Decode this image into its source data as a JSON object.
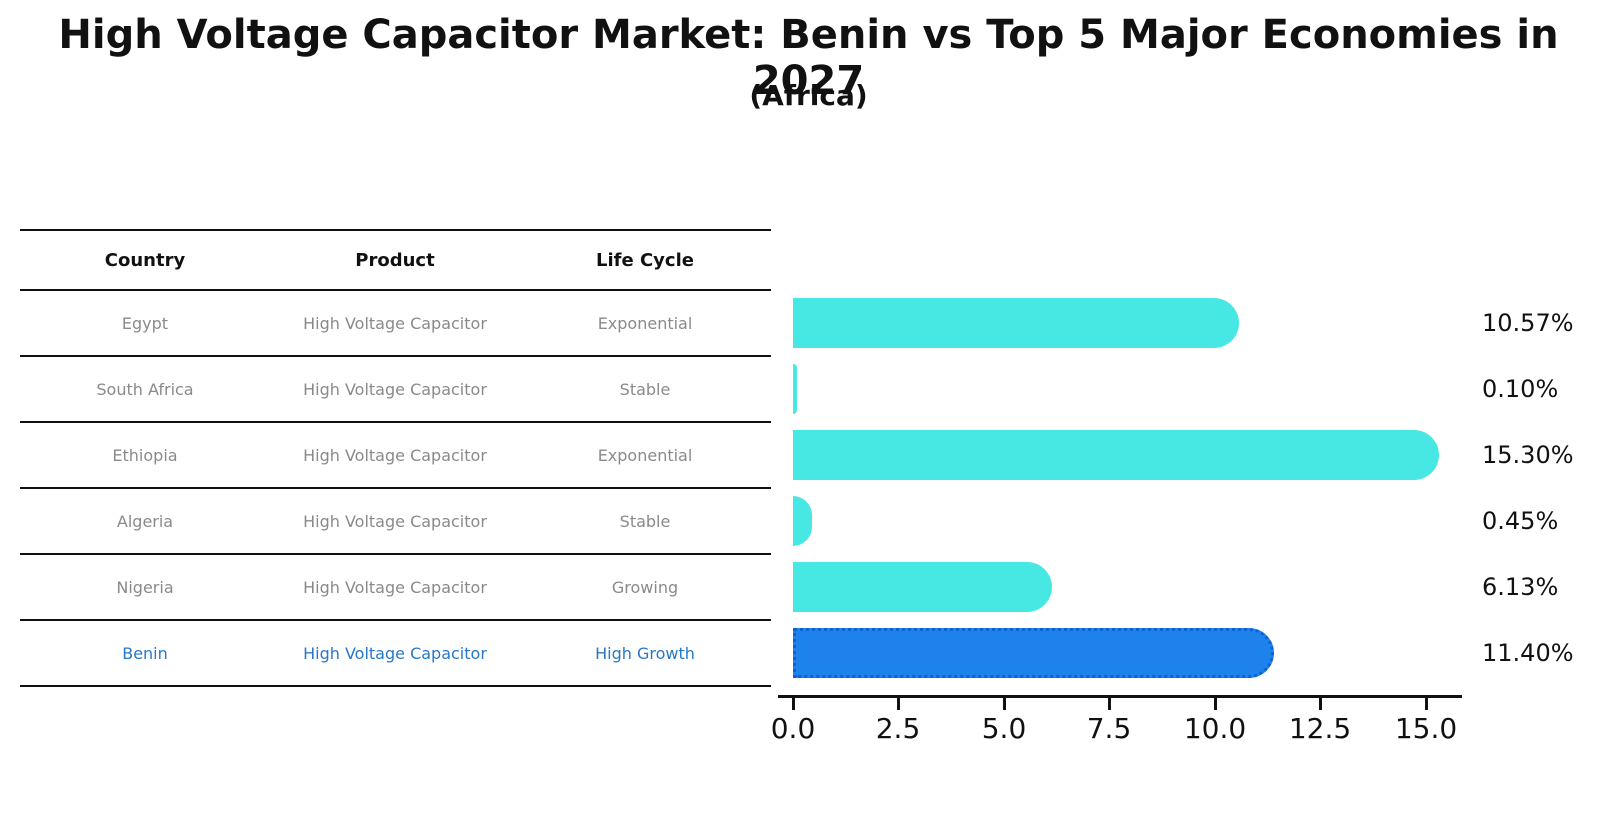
{
  "title": "High Voltage Capacitor Market: Benin vs Top 5 Major Economies in 2027",
  "subtitle": "(Africa)",
  "colors": {
    "bar": "#47E7E3",
    "highlight_bar": "#1E82EC",
    "highlight_bar_border": "#0C63CF",
    "table_text": "#8A8A8A",
    "highlight_text": "#2878C8",
    "axis": "#111111"
  },
  "table": {
    "headers": [
      "Country",
      "Product",
      "Life Cycle"
    ],
    "rows": [
      {
        "country": "Egypt",
        "product": "High Voltage Capacitor",
        "life_cycle": "Exponential",
        "highlight": false
      },
      {
        "country": "South Africa",
        "product": "High Voltage Capacitor",
        "life_cycle": "Stable",
        "highlight": false
      },
      {
        "country": "Ethiopia",
        "product": "High Voltage Capacitor",
        "life_cycle": "Exponential",
        "highlight": false
      },
      {
        "country": "Algeria",
        "product": "High Voltage Capacitor",
        "life_cycle": "Stable",
        "highlight": false
      },
      {
        "country": "Nigeria",
        "product": "High Voltage Capacitor",
        "life_cycle": "Growing",
        "highlight": false
      },
      {
        "country": "Benin",
        "product": "High Voltage Capacitor",
        "life_cycle": "High Growth",
        "highlight": true
      }
    ]
  },
  "chart_data": {
    "type": "bar",
    "orientation": "horizontal",
    "title": "High Voltage Capacitor Market: Benin vs Top 5 Major Economies in 2027 (Africa)",
    "categories": [
      "Egypt",
      "South Africa",
      "Ethiopia",
      "Algeria",
      "Nigeria",
      "Benin"
    ],
    "values": [
      10.57,
      0.1,
      15.3,
      0.45,
      6.13,
      11.4
    ],
    "value_labels": [
      "10.57%",
      "0.10%",
      "15.30%",
      "0.45%",
      "6.13%",
      "11.40%"
    ],
    "highlight_category": "Benin",
    "xlabel": "",
    "ylabel": "",
    "xlim": [
      0,
      15.9
    ],
    "xticks": [
      0.0,
      2.5,
      5.0,
      7.5,
      10.0,
      12.5,
      15.0
    ],
    "xtick_labels": [
      "0.0",
      "2.5",
      "5.0",
      "7.5",
      "10.0",
      "12.5",
      "15.0"
    ],
    "grid": false,
    "legend": false
  }
}
